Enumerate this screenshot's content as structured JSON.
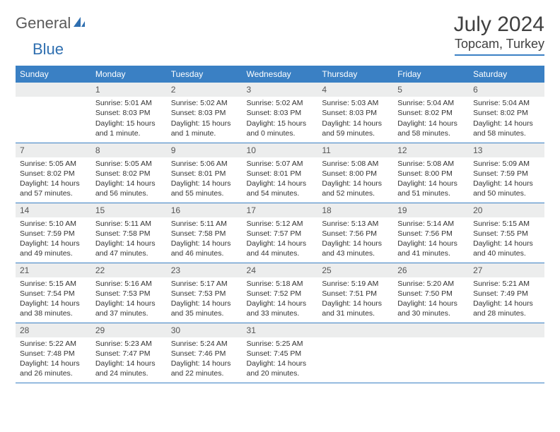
{
  "logo": {
    "part1": "General",
    "part2": "Blue"
  },
  "title": "July 2024",
  "location": "Topcam, Turkey",
  "colors": {
    "header_bg": "#3a80c4",
    "header_text": "#ffffff",
    "daynum_bg": "#eceded",
    "border": "#3a80c4",
    "logo_gray": "#5a5a5a",
    "logo_blue": "#2f6fb0"
  },
  "day_headers": [
    "Sunday",
    "Monday",
    "Tuesday",
    "Wednesday",
    "Thursday",
    "Friday",
    "Saturday"
  ],
  "weeks": [
    [
      null,
      {
        "n": "1",
        "sr": "Sunrise: 5:01 AM",
        "ss": "Sunset: 8:03 PM",
        "dl": "Daylight: 15 hours and 1 minute."
      },
      {
        "n": "2",
        "sr": "Sunrise: 5:02 AM",
        "ss": "Sunset: 8:03 PM",
        "dl": "Daylight: 15 hours and 1 minute."
      },
      {
        "n": "3",
        "sr": "Sunrise: 5:02 AM",
        "ss": "Sunset: 8:03 PM",
        "dl": "Daylight: 15 hours and 0 minutes."
      },
      {
        "n": "4",
        "sr": "Sunrise: 5:03 AM",
        "ss": "Sunset: 8:03 PM",
        "dl": "Daylight: 14 hours and 59 minutes."
      },
      {
        "n": "5",
        "sr": "Sunrise: 5:04 AM",
        "ss": "Sunset: 8:02 PM",
        "dl": "Daylight: 14 hours and 58 minutes."
      },
      {
        "n": "6",
        "sr": "Sunrise: 5:04 AM",
        "ss": "Sunset: 8:02 PM",
        "dl": "Daylight: 14 hours and 58 minutes."
      }
    ],
    [
      {
        "n": "7",
        "sr": "Sunrise: 5:05 AM",
        "ss": "Sunset: 8:02 PM",
        "dl": "Daylight: 14 hours and 57 minutes."
      },
      {
        "n": "8",
        "sr": "Sunrise: 5:05 AM",
        "ss": "Sunset: 8:02 PM",
        "dl": "Daylight: 14 hours and 56 minutes."
      },
      {
        "n": "9",
        "sr": "Sunrise: 5:06 AM",
        "ss": "Sunset: 8:01 PM",
        "dl": "Daylight: 14 hours and 55 minutes."
      },
      {
        "n": "10",
        "sr": "Sunrise: 5:07 AM",
        "ss": "Sunset: 8:01 PM",
        "dl": "Daylight: 14 hours and 54 minutes."
      },
      {
        "n": "11",
        "sr": "Sunrise: 5:08 AM",
        "ss": "Sunset: 8:00 PM",
        "dl": "Daylight: 14 hours and 52 minutes."
      },
      {
        "n": "12",
        "sr": "Sunrise: 5:08 AM",
        "ss": "Sunset: 8:00 PM",
        "dl": "Daylight: 14 hours and 51 minutes."
      },
      {
        "n": "13",
        "sr": "Sunrise: 5:09 AM",
        "ss": "Sunset: 7:59 PM",
        "dl": "Daylight: 14 hours and 50 minutes."
      }
    ],
    [
      {
        "n": "14",
        "sr": "Sunrise: 5:10 AM",
        "ss": "Sunset: 7:59 PM",
        "dl": "Daylight: 14 hours and 49 minutes."
      },
      {
        "n": "15",
        "sr": "Sunrise: 5:11 AM",
        "ss": "Sunset: 7:58 PM",
        "dl": "Daylight: 14 hours and 47 minutes."
      },
      {
        "n": "16",
        "sr": "Sunrise: 5:11 AM",
        "ss": "Sunset: 7:58 PM",
        "dl": "Daylight: 14 hours and 46 minutes."
      },
      {
        "n": "17",
        "sr": "Sunrise: 5:12 AM",
        "ss": "Sunset: 7:57 PM",
        "dl": "Daylight: 14 hours and 44 minutes."
      },
      {
        "n": "18",
        "sr": "Sunrise: 5:13 AM",
        "ss": "Sunset: 7:56 PM",
        "dl": "Daylight: 14 hours and 43 minutes."
      },
      {
        "n": "19",
        "sr": "Sunrise: 5:14 AM",
        "ss": "Sunset: 7:56 PM",
        "dl": "Daylight: 14 hours and 41 minutes."
      },
      {
        "n": "20",
        "sr": "Sunrise: 5:15 AM",
        "ss": "Sunset: 7:55 PM",
        "dl": "Daylight: 14 hours and 40 minutes."
      }
    ],
    [
      {
        "n": "21",
        "sr": "Sunrise: 5:15 AM",
        "ss": "Sunset: 7:54 PM",
        "dl": "Daylight: 14 hours and 38 minutes."
      },
      {
        "n": "22",
        "sr": "Sunrise: 5:16 AM",
        "ss": "Sunset: 7:53 PM",
        "dl": "Daylight: 14 hours and 37 minutes."
      },
      {
        "n": "23",
        "sr": "Sunrise: 5:17 AM",
        "ss": "Sunset: 7:53 PM",
        "dl": "Daylight: 14 hours and 35 minutes."
      },
      {
        "n": "24",
        "sr": "Sunrise: 5:18 AM",
        "ss": "Sunset: 7:52 PM",
        "dl": "Daylight: 14 hours and 33 minutes."
      },
      {
        "n": "25",
        "sr": "Sunrise: 5:19 AM",
        "ss": "Sunset: 7:51 PM",
        "dl": "Daylight: 14 hours and 31 minutes."
      },
      {
        "n": "26",
        "sr": "Sunrise: 5:20 AM",
        "ss": "Sunset: 7:50 PM",
        "dl": "Daylight: 14 hours and 30 minutes."
      },
      {
        "n": "27",
        "sr": "Sunrise: 5:21 AM",
        "ss": "Sunset: 7:49 PM",
        "dl": "Daylight: 14 hours and 28 minutes."
      }
    ],
    [
      {
        "n": "28",
        "sr": "Sunrise: 5:22 AM",
        "ss": "Sunset: 7:48 PM",
        "dl": "Daylight: 14 hours and 26 minutes."
      },
      {
        "n": "29",
        "sr": "Sunrise: 5:23 AM",
        "ss": "Sunset: 7:47 PM",
        "dl": "Daylight: 14 hours and 24 minutes."
      },
      {
        "n": "30",
        "sr": "Sunrise: 5:24 AM",
        "ss": "Sunset: 7:46 PM",
        "dl": "Daylight: 14 hours and 22 minutes."
      },
      {
        "n": "31",
        "sr": "Sunrise: 5:25 AM",
        "ss": "Sunset: 7:45 PM",
        "dl": "Daylight: 14 hours and 20 minutes."
      },
      null,
      null,
      null
    ]
  ]
}
